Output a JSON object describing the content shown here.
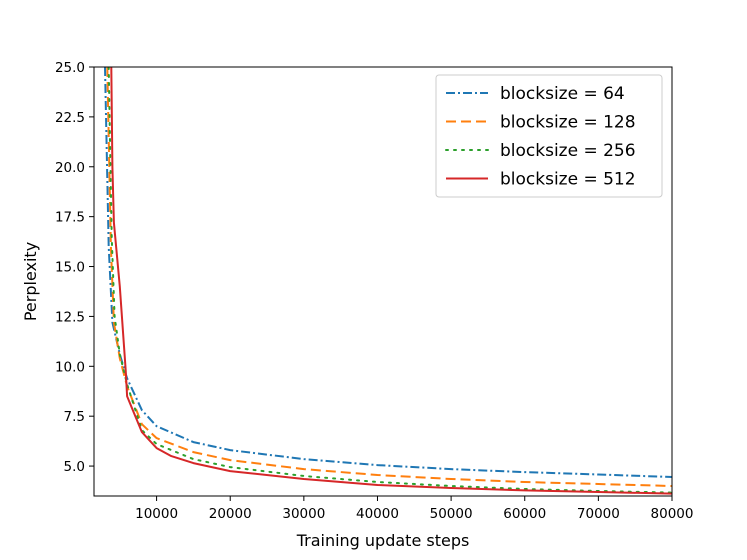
{
  "chart_data": {
    "type": "line",
    "title": "",
    "xlabel": "Training update steps",
    "ylabel": "Perplexity",
    "xlim": [
      1500,
      80000
    ],
    "ylim": [
      3.5,
      25.0
    ],
    "xticks": [
      10000,
      20000,
      30000,
      40000,
      50000,
      60000,
      70000,
      80000
    ],
    "xtick_labels": [
      "10000",
      "20000",
      "30000",
      "40000",
      "50000",
      "60000",
      "70000",
      "80000"
    ],
    "yticks": [
      5.0,
      7.5,
      10.0,
      12.5,
      15.0,
      17.5,
      20.0,
      22.5,
      25.0
    ],
    "ytick_labels": [
      "5.0",
      "7.5",
      "10.0",
      "12.5",
      "15.0",
      "17.5",
      "20.0",
      "22.5",
      "25.0"
    ],
    "grid": false,
    "legend_position": "top-right",
    "series": [
      {
        "name": "blocksize = 64",
        "color": "#1f77b4",
        "style": "dashdot",
        "x": [
          3000,
          3500,
          4000,
          5000,
          6000,
          8000,
          10000,
          15000,
          20000,
          30000,
          40000,
          50000,
          60000,
          70000,
          80000
        ],
        "y": [
          25.0,
          16.0,
          12.2,
          10.6,
          9.4,
          7.8,
          7.0,
          6.2,
          5.8,
          5.35,
          5.05,
          4.85,
          4.7,
          4.58,
          4.45
        ]
      },
      {
        "name": "blocksize = 128",
        "color": "#ff7f0e",
        "style": "dashed",
        "x": [
          3300,
          3800,
          4200,
          5000,
          6000,
          8000,
          10000,
          15000,
          20000,
          30000,
          40000,
          50000,
          60000,
          70000,
          80000
        ],
        "y": [
          25.0,
          16.0,
          12.2,
          10.4,
          9.0,
          7.1,
          6.4,
          5.7,
          5.3,
          4.85,
          4.55,
          4.35,
          4.2,
          4.1,
          4.0
        ]
      },
      {
        "name": "blocksize = 256",
        "color": "#2ca02c",
        "style": "dotted",
        "x": [
          3500,
          3900,
          4300,
          5000,
          6000,
          8000,
          10000,
          15000,
          20000,
          30000,
          40000,
          50000,
          60000,
          70000,
          80000
        ],
        "y": [
          25.0,
          16.5,
          12.5,
          10.6,
          9.1,
          6.8,
          6.1,
          5.35,
          4.95,
          4.5,
          4.2,
          4.0,
          3.85,
          3.75,
          3.67
        ]
      },
      {
        "name": "blocksize = 512",
        "color": "#d62728",
        "style": "solid",
        "x": [
          3850,
          4000,
          4200,
          5000,
          5800,
          6000,
          7000,
          8000,
          9000,
          10000,
          12000,
          15000,
          20000,
          30000,
          40000,
          50000,
          60000,
          70000,
          80000
        ],
        "y": [
          25.0,
          20.0,
          17.2,
          14.0,
          9.8,
          8.5,
          7.6,
          6.7,
          6.3,
          5.9,
          5.5,
          5.15,
          4.75,
          4.35,
          4.05,
          3.9,
          3.78,
          3.7,
          3.62
        ]
      }
    ]
  }
}
